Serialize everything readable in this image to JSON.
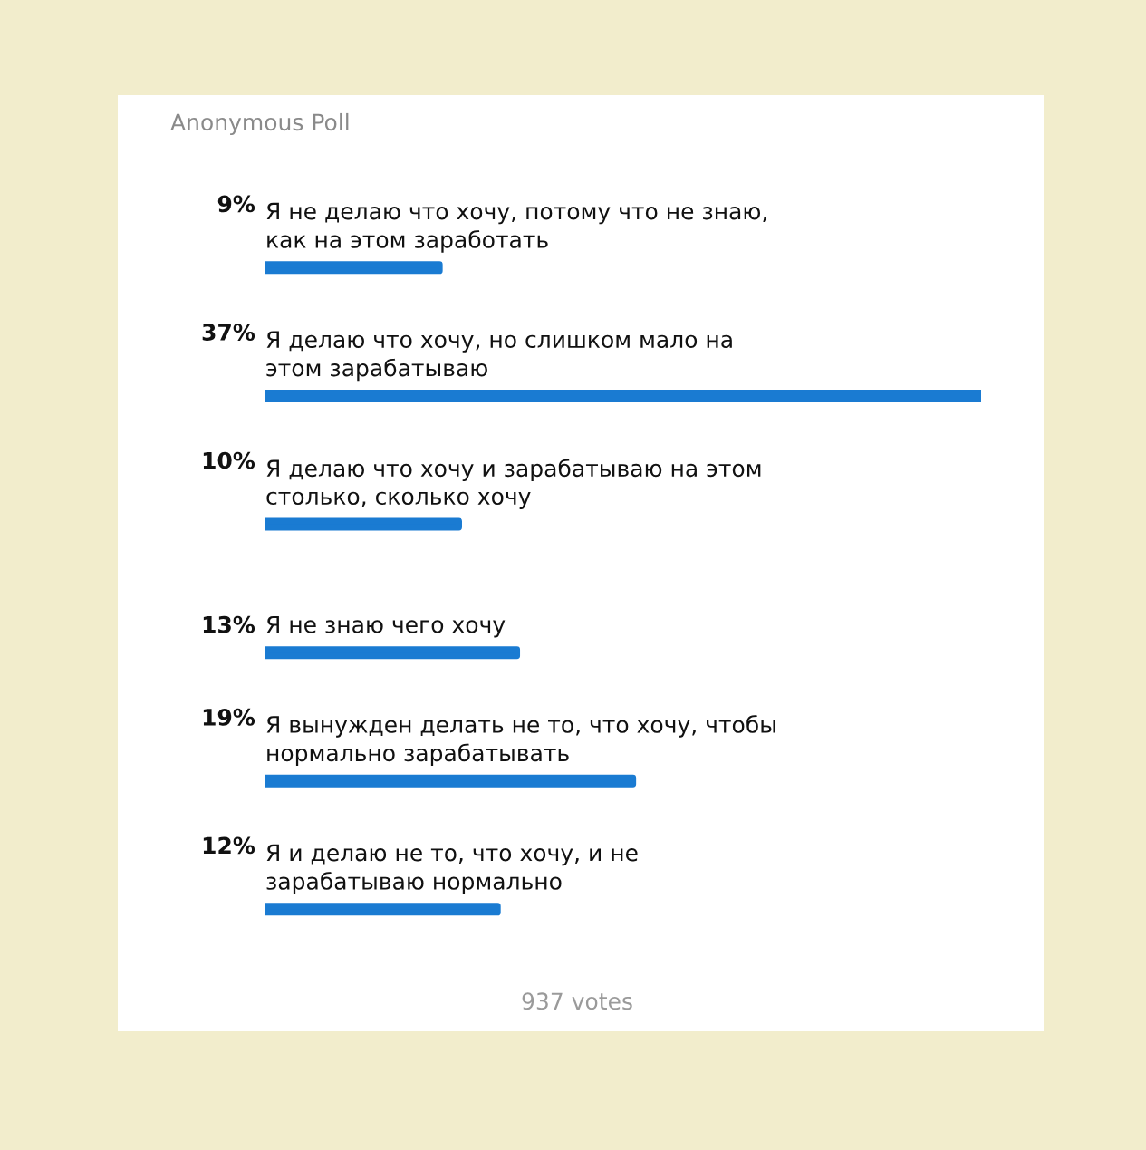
{
  "chart_data": {
    "type": "bar",
    "orientation": "horizontal",
    "title": "Anonymous Poll",
    "categories": [
      "Я не делаю что хочу, потому что не знаю,\nкак на этом заработать",
      "Я делаю что хочу, но слишком мало на\nэтом зарабатываю",
      "Я делаю что хочу и зарабатываю на этом\nстолько, сколько хочу",
      "Я не знаю чего хочу",
      "Я вынужден делать не то, что хочу, чтобы\nнормально зарабатывать",
      "Я и делаю не то, что хочу, и не\nзарабатываю нормально"
    ],
    "values": [
      9,
      37,
      10,
      13,
      19,
      12
    ],
    "value_labels": [
      "9%",
      "37%",
      "10%",
      "13%",
      "19%",
      "12%"
    ],
    "color": "#1a7bd2",
    "xlim": [
      0,
      37
    ],
    "legend": false,
    "annotations": [
      "937 votes"
    ]
  }
}
